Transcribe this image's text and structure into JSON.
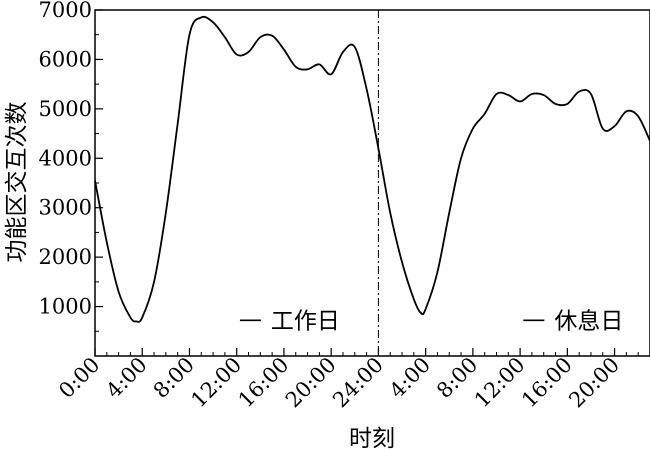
{
  "chart_data": {
    "type": "line",
    "xlabel": "时刻",
    "ylabel": "功能区交互次数",
    "ylim": [
      0,
      7000
    ],
    "xlim": [
      0,
      47
    ],
    "yticks": [
      1000,
      2000,
      3000,
      4000,
      5000,
      6000,
      7000
    ],
    "ytick_labels": [
      "1000",
      "2000",
      "3000",
      "4000",
      "5000",
      "6000",
      "7000"
    ],
    "xticks": [
      0,
      4,
      8,
      12,
      16,
      20,
      24,
      28,
      32,
      36,
      40,
      44
    ],
    "xtick_labels": [
      "0:00",
      "4:00",
      "8:00",
      "12:00",
      "16:00",
      "20:00",
      "24:00",
      "4:00",
      "8:00",
      "12:00",
      "16:00",
      "20:00"
    ],
    "divider_x": 24,
    "annotations": [
      {
        "text": "工作日",
        "x": 16,
        "y": 600
      },
      {
        "text": "休息日",
        "x": 40,
        "y": 600
      }
    ],
    "series": [
      {
        "name": "",
        "x": [
          0,
          1,
          2,
          3,
          3.5,
          4,
          5,
          6,
          7,
          8,
          9,
          10,
          11,
          12,
          13,
          14,
          15,
          16,
          17,
          18,
          19,
          20,
          21,
          22,
          23,
          24,
          25,
          26,
          27,
          27.6,
          28,
          29,
          30,
          31,
          32,
          33,
          34,
          35,
          36,
          37,
          38,
          39,
          40,
          41,
          42,
          43,
          44,
          45,
          46,
          47
        ],
        "y": [
          3550,
          2300,
          1300,
          780,
          700,
          780,
          1500,
          2900,
          4700,
          6500,
          6850,
          6750,
          6450,
          6100,
          6150,
          6450,
          6480,
          6200,
          5850,
          5800,
          5900,
          5700,
          6150,
          6250,
          5400,
          4200,
          2900,
          1900,
          1150,
          870,
          950,
          1700,
          2900,
          4000,
          4600,
          4900,
          5300,
          5280,
          5150,
          5300,
          5280,
          5100,
          5100,
          5350,
          5300,
          4600,
          4650,
          4950,
          4850,
          4350
        ]
      }
    ]
  }
}
